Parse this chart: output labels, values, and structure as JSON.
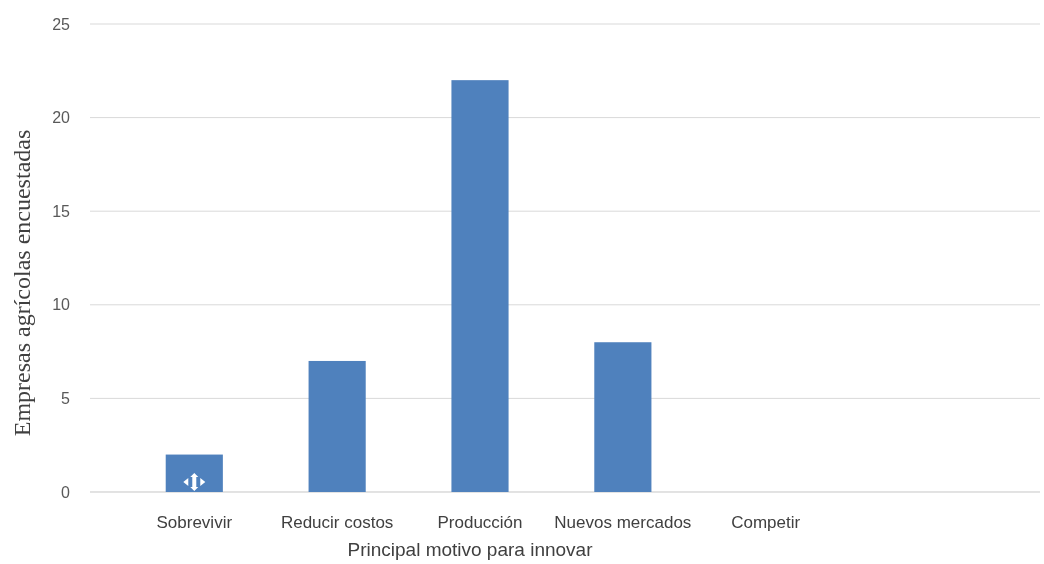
{
  "chart_data": {
    "type": "bar",
    "xlabel": "Principal motivo para innovar",
    "ylabel": "Empresas agrícolas encuestadas",
    "categories": [
      "Sobrevivir",
      "Reducir costos",
      "Producción",
      "Nuevos mercados",
      "Competir"
    ],
    "values": [
      2,
      7,
      22,
      8,
      0
    ],
    "color": "#4f81bd",
    "ylim": [
      0,
      25
    ],
    "yticks": [
      0,
      5,
      10,
      15,
      20,
      25
    ],
    "grid": "y"
  }
}
